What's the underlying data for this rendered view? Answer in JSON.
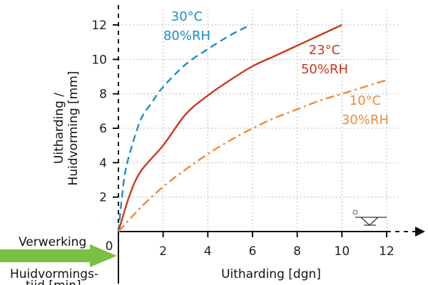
{
  "chart_data": {
    "type": "line",
    "xlabel": "Uitharding [dgn]",
    "ylabel_line1": "Uitharding /",
    "ylabel_line2": "Huidvorming [mm]",
    "xlim": [
      0,
      12
    ],
    "ylim": [
      0,
      12
    ],
    "xticks": [
      2,
      4,
      6,
      8,
      10,
      12
    ],
    "yticks": [
      2,
      4,
      6,
      8,
      10,
      12
    ],
    "origin_label": "0",
    "grid": true,
    "series": [
      {
        "name": "30°C 80%RH",
        "label_line1": "30°C",
        "label_line2": "80%RH",
        "color": "#1b8ccc",
        "style": "dashed",
        "x": [
          0,
          0.25,
          0.5,
          1,
          1.5,
          2,
          3,
          4,
          5,
          5.9
        ],
        "y": [
          0,
          3.0,
          4.5,
          6.5,
          7.5,
          8.4,
          9.7,
          10.6,
          11.4,
          12.0
        ]
      },
      {
        "name": "23°C 50%RH",
        "label_line1": "23°C",
        "label_line2": "50%RH",
        "color": "#c93a1c",
        "style": "solid",
        "x": [
          0,
          0.5,
          1,
          2,
          3,
          4,
          5,
          6,
          7,
          8,
          9,
          10
        ],
        "y": [
          0,
          2.1,
          3.5,
          5.0,
          6.8,
          7.9,
          8.8,
          9.6,
          10.2,
          10.8,
          11.4,
          12.0
        ]
      },
      {
        "name": "10°C 30%RH",
        "label_line1": "10°C",
        "label_line2": "30%RH",
        "color": "#ee8a3a",
        "style": "dashdot",
        "x": [
          0,
          1,
          2,
          3,
          4,
          5,
          6,
          7,
          8,
          9,
          10,
          11,
          12
        ],
        "y": [
          0,
          1.4,
          2.6,
          3.6,
          4.5,
          5.3,
          6.0,
          6.6,
          7.1,
          7.6,
          8.0,
          8.4,
          8.8
        ]
      }
    ]
  },
  "annotations": {
    "arrow_label": "Verwerking",
    "bottom_label": "Huidvormings-",
    "bottom_label_cut": "tijd [min]",
    "arrow_color": "#7bc043"
  }
}
